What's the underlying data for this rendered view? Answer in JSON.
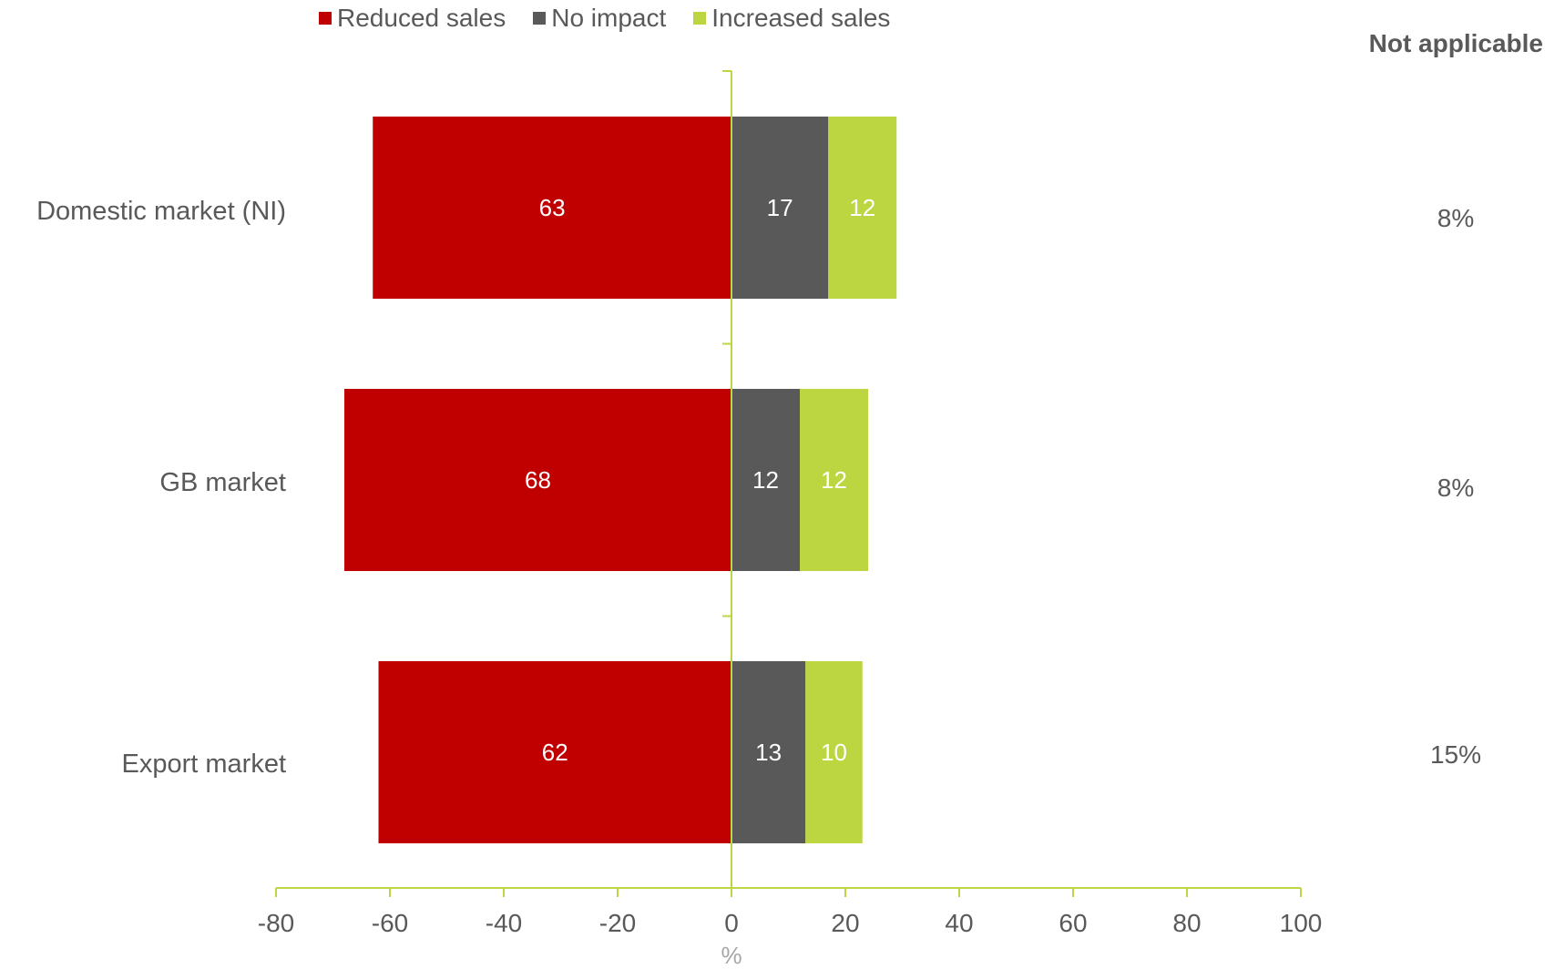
{
  "legend": {
    "items": [
      {
        "label": "Reduced sales",
        "color": "#c00000"
      },
      {
        "label": "No impact",
        "color": "#595959"
      },
      {
        "label": "Increased sales",
        "color": "#bcd642"
      }
    ]
  },
  "not_applicable": {
    "header": "Not applicable",
    "values": [
      "8%",
      "8%",
      "15%"
    ]
  },
  "chart_data": {
    "type": "bar",
    "orientation": "horizontal-diverging-stacked",
    "categories": [
      "Domestic market (NI)",
      "GB market",
      "Export market"
    ],
    "series": [
      {
        "name": "Reduced sales",
        "values": [
          63,
          68,
          62
        ],
        "direction": "negative"
      },
      {
        "name": "No impact",
        "values": [
          17,
          12,
          13
        ],
        "direction": "positive"
      },
      {
        "name": "Increased sales",
        "values": [
          12,
          12,
          10
        ],
        "direction": "positive"
      }
    ],
    "xlabel": "%",
    "xlim": [
      -80,
      100
    ],
    "xticks": [
      "-80",
      "-60",
      "-40",
      "-20",
      "0",
      "20",
      "40",
      "60",
      "80",
      "100"
    ],
    "grid": false,
    "legend_position": "top"
  }
}
